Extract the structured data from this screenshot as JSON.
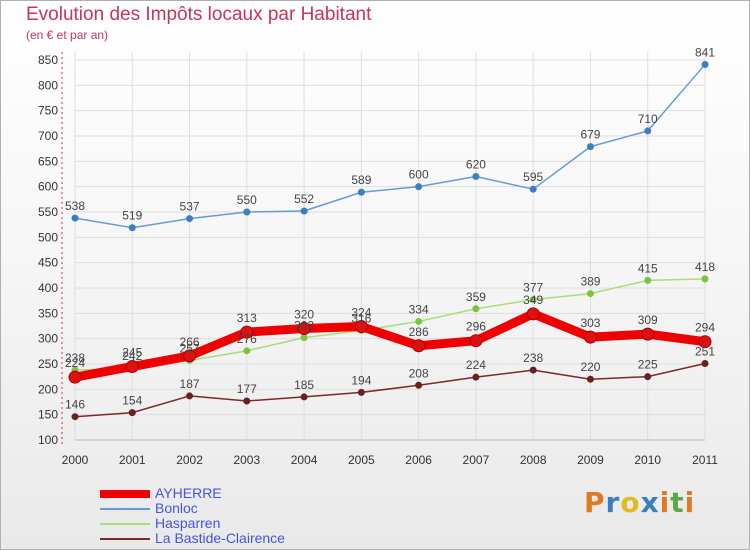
{
  "header": {
    "title": "Evolution des Impôts locaux par Habitant",
    "subtitle": "(en € et par an)"
  },
  "logo": {
    "text": "Proxiti",
    "letters": [
      {
        "ch": "P",
        "color": "#e07a22"
      },
      {
        "ch": "r",
        "color": "#3a7dc2"
      },
      {
        "ch": "o",
        "color": "#e0bb22"
      },
      {
        "ch": "x",
        "color": "#3a7dc2"
      },
      {
        "ch": "i",
        "color": "#e07a22"
      },
      {
        "ch": "t",
        "color": "#5aa84a"
      },
      {
        "ch": "i",
        "color": "#e07a22"
      }
    ]
  },
  "chart_data": {
    "type": "line",
    "title": "Evolution des Impôts locaux par Habitant",
    "subtitle": "(en € et par an)",
    "x": [
      "2000",
      "2001",
      "2002",
      "2003",
      "2004",
      "2005",
      "2006",
      "2007",
      "2008",
      "2009",
      "2010",
      "2011"
    ],
    "ylim": [
      100,
      850
    ],
    "yticks": [
      100,
      150,
      200,
      250,
      300,
      350,
      400,
      450,
      500,
      550,
      600,
      650,
      700,
      750,
      800,
      850
    ],
    "grid": true,
    "legend_position": "bottom-left",
    "series": [
      {
        "name": "AYHERRE",
        "color": "#ee0000",
        "marker": "#dd1111",
        "emphasis": true,
        "values": [
          224,
          245,
          266,
          313,
          320,
          324,
          286,
          296,
          349,
          303,
          309,
          294
        ]
      },
      {
        "name": "Bonloc",
        "color": "#6a9bd0",
        "marker": "#3a7fc0",
        "emphasis": false,
        "values": [
          538,
          519,
          537,
          550,
          552,
          589,
          600,
          620,
          595,
          679,
          710,
          841
        ]
      },
      {
        "name": "Hasparren",
        "color": "#a8dd7a",
        "marker": "#7bc440",
        "emphasis": false,
        "values": [
          238,
          242,
          257,
          276,
          302,
          316,
          334,
          359,
          377,
          389,
          415,
          418
        ]
      },
      {
        "name": "La Bastide-Clairence",
        "color": "#7a2a2a",
        "marker": "#6a2020",
        "emphasis": false,
        "values": [
          146,
          154,
          187,
          177,
          185,
          194,
          208,
          224,
          238,
          220,
          225,
          251
        ]
      }
    ]
  }
}
